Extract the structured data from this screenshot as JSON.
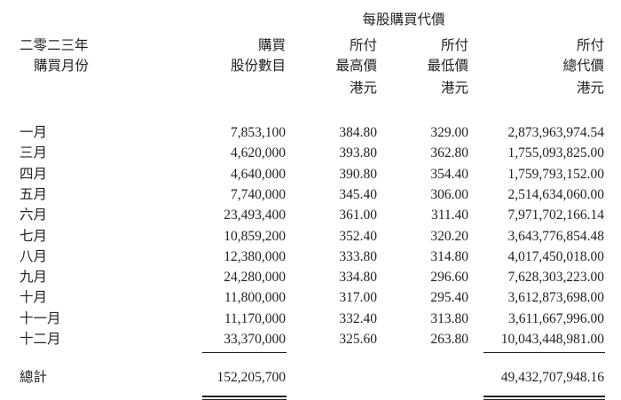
{
  "header": {
    "group_title": "每股購買代價",
    "col0": [
      "二零二三年",
      "購買月份"
    ],
    "col1": [
      "購買",
      "股份數目"
    ],
    "col2": [
      "所付",
      "最高價",
      "港元"
    ],
    "col3": [
      "所付",
      "最低價",
      "港元"
    ],
    "col4": [
      "所付",
      "總代價",
      "港元"
    ]
  },
  "rows": [
    {
      "month": "一月",
      "shares": "7,853,100",
      "high": "384.80",
      "low": "329.00",
      "total": "2,873,963,974.54"
    },
    {
      "month": "三月",
      "shares": "4,620,000",
      "high": "393.80",
      "low": "362.80",
      "total": "1,755,093,825.00"
    },
    {
      "month": "四月",
      "shares": "4,640,000",
      "high": "390.80",
      "low": "354.40",
      "total": "1,759,793,152.00"
    },
    {
      "month": "五月",
      "shares": "7,740,000",
      "high": "345.40",
      "low": "306.00",
      "total": "2,514,634,060.00"
    },
    {
      "month": "六月",
      "shares": "23,493,400",
      "high": "361.00",
      "low": "311.40",
      "total": "7,971,702,166.14"
    },
    {
      "month": "七月",
      "shares": "10,859,200",
      "high": "352.40",
      "low": "320.20",
      "total": "3,643,776,854.48"
    },
    {
      "month": "八月",
      "shares": "12,380,000",
      "high": "333.80",
      "low": "314.80",
      "total": "4,017,450,018.00"
    },
    {
      "month": "九月",
      "shares": "24,280,000",
      "high": "334.80",
      "low": "296.60",
      "total": "7,628,303,223.00"
    },
    {
      "month": "十月",
      "shares": "11,800,000",
      "high": "317.00",
      "low": "295.40",
      "total": "3,612,873,698.00"
    },
    {
      "month": "十一月",
      "shares": "11,170,000",
      "high": "332.40",
      "low": "313.80",
      "total": "3,611,667,996.00"
    },
    {
      "month": "十二月",
      "shares": "33,370,000",
      "high": "325.60",
      "low": "263.80",
      "total": "10,043,448,981.00"
    }
  ],
  "total": {
    "label": "總計",
    "shares": "152,205,700",
    "total": "49,432,707,948.16"
  }
}
